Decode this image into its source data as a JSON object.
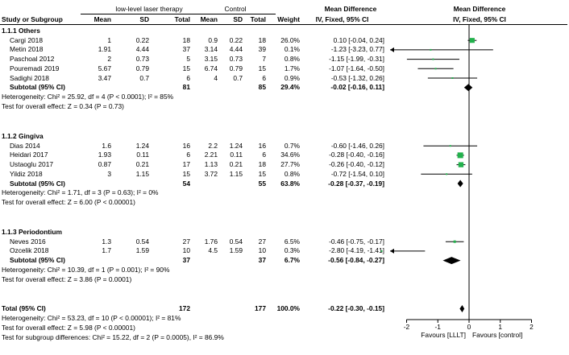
{
  "header": {
    "study_col": "Study or Subgroup",
    "exp_group": "low-level laser therapy",
    "ctl_group": "Control",
    "mean": "Mean",
    "sd": "SD",
    "total": "Total",
    "weight": "Weight",
    "md_title": "Mean Difference",
    "md_method": "IV, Fixed, 95% CI"
  },
  "chart_data": {
    "type": "forest",
    "xlim": [
      -2,
      2
    ],
    "ticks": [
      "-2",
      "-1",
      "0",
      "1",
      "2"
    ],
    "xlabel_left": "Favours [LLLT]",
    "xlabel_right": "Favours [control]",
    "groups": [
      {
        "title": "1.1.1 Others",
        "studies": [
          {
            "name": "Cargi 2018",
            "e_mean": "1",
            "e_sd": "0.22",
            "e_n": "18",
            "c_mean": "0.9",
            "c_sd": "0.22",
            "c_n": "18",
            "weight": "26.0%",
            "ci_text": "0.10 [-0.04, 0.24]",
            "md": 0.1,
            "lo": -0.04,
            "hi": 0.24,
            "w": 26.0
          },
          {
            "name": "Metin 2018",
            "e_mean": "1.91",
            "e_sd": "4.44",
            "e_n": "37",
            "c_mean": "3.14",
            "c_sd": "4.44",
            "c_n": "39",
            "weight": "0.1%",
            "ci_text": "-1.23 [-3.23, 0.77]",
            "md": -1.23,
            "lo": -3.23,
            "hi": 0.77,
            "w": 0.1
          },
          {
            "name": "Paschoal 2012",
            "e_mean": "2",
            "e_sd": "0.73",
            "e_n": "5",
            "c_mean": "3.15",
            "c_sd": "0.73",
            "c_n": "7",
            "weight": "0.8%",
            "ci_text": "-1.15 [-1.99, -0.31]",
            "md": -1.15,
            "lo": -1.99,
            "hi": -0.31,
            "w": 0.8
          },
          {
            "name": "Pouremadi 2019",
            "e_mean": "5.67",
            "e_sd": "0.79",
            "e_n": "15",
            "c_mean": "6.74",
            "c_sd": "0.79",
            "c_n": "15",
            "weight": "1.7%",
            "ci_text": "-1.07 [-1.64, -0.50]",
            "md": -1.07,
            "lo": -1.64,
            "hi": -0.5,
            "w": 1.7
          },
          {
            "name": "Sadighi 2018",
            "e_mean": "3.47",
            "e_sd": "0.7",
            "e_n": "6",
            "c_mean": "4",
            "c_sd": "0.7",
            "c_n": "6",
            "weight": "0.9%",
            "ci_text": "-0.53 [-1.32, 0.26]",
            "md": -0.53,
            "lo": -1.32,
            "hi": 0.26,
            "w": 0.9
          }
        ],
        "subtotal": {
          "label": "Subtotal (95% CI)",
          "e_n": "81",
          "c_n": "85",
          "weight": "29.4%",
          "ci_text": "-0.02 [-0.16, 0.11]",
          "md": -0.02,
          "lo": -0.16,
          "hi": 0.11
        },
        "heterogeneity": "Heterogeneity: Chi² = 25.92, df = 4 (P < 0.0001); I² = 85%",
        "overall": "Test for overall effect: Z = 0.34 (P = 0.73)"
      },
      {
        "title": "1.1.2 Gingiva",
        "studies": [
          {
            "name": "Dias 2014",
            "e_mean": "1.6",
            "e_sd": "1.24",
            "e_n": "16",
            "c_mean": "2.2",
            "c_sd": "1.24",
            "c_n": "16",
            "weight": "0.7%",
            "ci_text": "-0.60 [-1.46, 0.26]",
            "md": -0.6,
            "lo": -1.46,
            "hi": 0.26,
            "w": 0.7
          },
          {
            "name": "Heidari 2017",
            "e_mean": "1.93",
            "e_sd": "0.11",
            "e_n": "6",
            "c_mean": "2.21",
            "c_sd": "0.11",
            "c_n": "6",
            "weight": "34.6%",
            "ci_text": "-0.28 [-0.40, -0.16]",
            "md": -0.28,
            "lo": -0.4,
            "hi": -0.16,
            "w": 34.6
          },
          {
            "name": "Ustaoglu 2017",
            "e_mean": "0.87",
            "e_sd": "0.21",
            "e_n": "17",
            "c_mean": "1.13",
            "c_sd": "0.21",
            "c_n": "18",
            "weight": "27.7%",
            "ci_text": "-0.26 [-0.40, -0.12]",
            "md": -0.26,
            "lo": -0.4,
            "hi": -0.12,
            "w": 27.7
          },
          {
            "name": "Yildiz 2018",
            "e_mean": "3",
            "e_sd": "1.15",
            "e_n": "15",
            "c_mean": "3.72",
            "c_sd": "1.15",
            "c_n": "15",
            "weight": "0.8%",
            "ci_text": "-0.72 [-1.54, 0.10]",
            "md": -0.72,
            "lo": -1.54,
            "hi": 0.1,
            "w": 0.8
          }
        ],
        "subtotal": {
          "label": "Subtotal (95% CI)",
          "e_n": "54",
          "c_n": "55",
          "weight": "63.8%",
          "ci_text": "-0.28 [-0.37, -0.19]",
          "md": -0.28,
          "lo": -0.37,
          "hi": -0.19
        },
        "heterogeneity": "Heterogeneity: Chi² = 1.71, df = 3 (P = 0.63); I² = 0%",
        "overall": "Test for overall effect: Z = 6.00 (P < 0.00001)"
      },
      {
        "title": "1.1.3 Periodontium",
        "studies": [
          {
            "name": "Neves 2016",
            "e_mean": "1.3",
            "e_sd": "0.54",
            "e_n": "27",
            "c_mean": "1.76",
            "c_sd": "0.54",
            "c_n": "27",
            "weight": "6.5%",
            "ci_text": "-0.46 [-0.75, -0.17]",
            "md": -0.46,
            "lo": -0.75,
            "hi": -0.17,
            "w": 6.5
          },
          {
            "name": "Ozcelik 2018",
            "e_mean": "1.7",
            "e_sd": "1.59",
            "e_n": "10",
            "c_mean": "4.5",
            "c_sd": "1.59",
            "c_n": "10",
            "weight": "0.3%",
            "ci_text": "-2.80 [-4.19, -1.41]",
            "md": -2.8,
            "lo": -4.19,
            "hi": -1.41,
            "w": 0.3
          }
        ],
        "subtotal": {
          "label": "Subtotal (95% CI)",
          "e_n": "37",
          "c_n": "37",
          "weight": "6.7%",
          "ci_text": "-0.56 [-0.84, -0.27]",
          "md": -0.56,
          "lo": -0.84,
          "hi": -0.27
        },
        "heterogeneity": "Heterogeneity: Chi² = 10.39, df = 1 (P = 0.001); I² = 90%",
        "overall": "Test for overall effect: Z = 3.86 (P = 0.0001)"
      }
    ],
    "total": {
      "label": "Total (95% CI)",
      "e_n": "172",
      "c_n": "177",
      "weight": "100.0%",
      "ci_text": "-0.22 [-0.30, -0.15]",
      "md": -0.22,
      "lo": -0.3,
      "hi": -0.15
    },
    "total_heterogeneity": "Heterogeneity: Chi² = 53.23, df = 10 (P < 0.00001); I² = 81%",
    "total_overall": "Test for overall effect: Z = 5.98 (P < 0.00001)",
    "subgroup_test": "Test for subgroup differences: Chi² = 15.22, df = 2 (P = 0.0005), I² = 86.9%",
    "colors": {
      "square": "#22b14c",
      "diamond": "#000000",
      "line": "#000000"
    }
  }
}
